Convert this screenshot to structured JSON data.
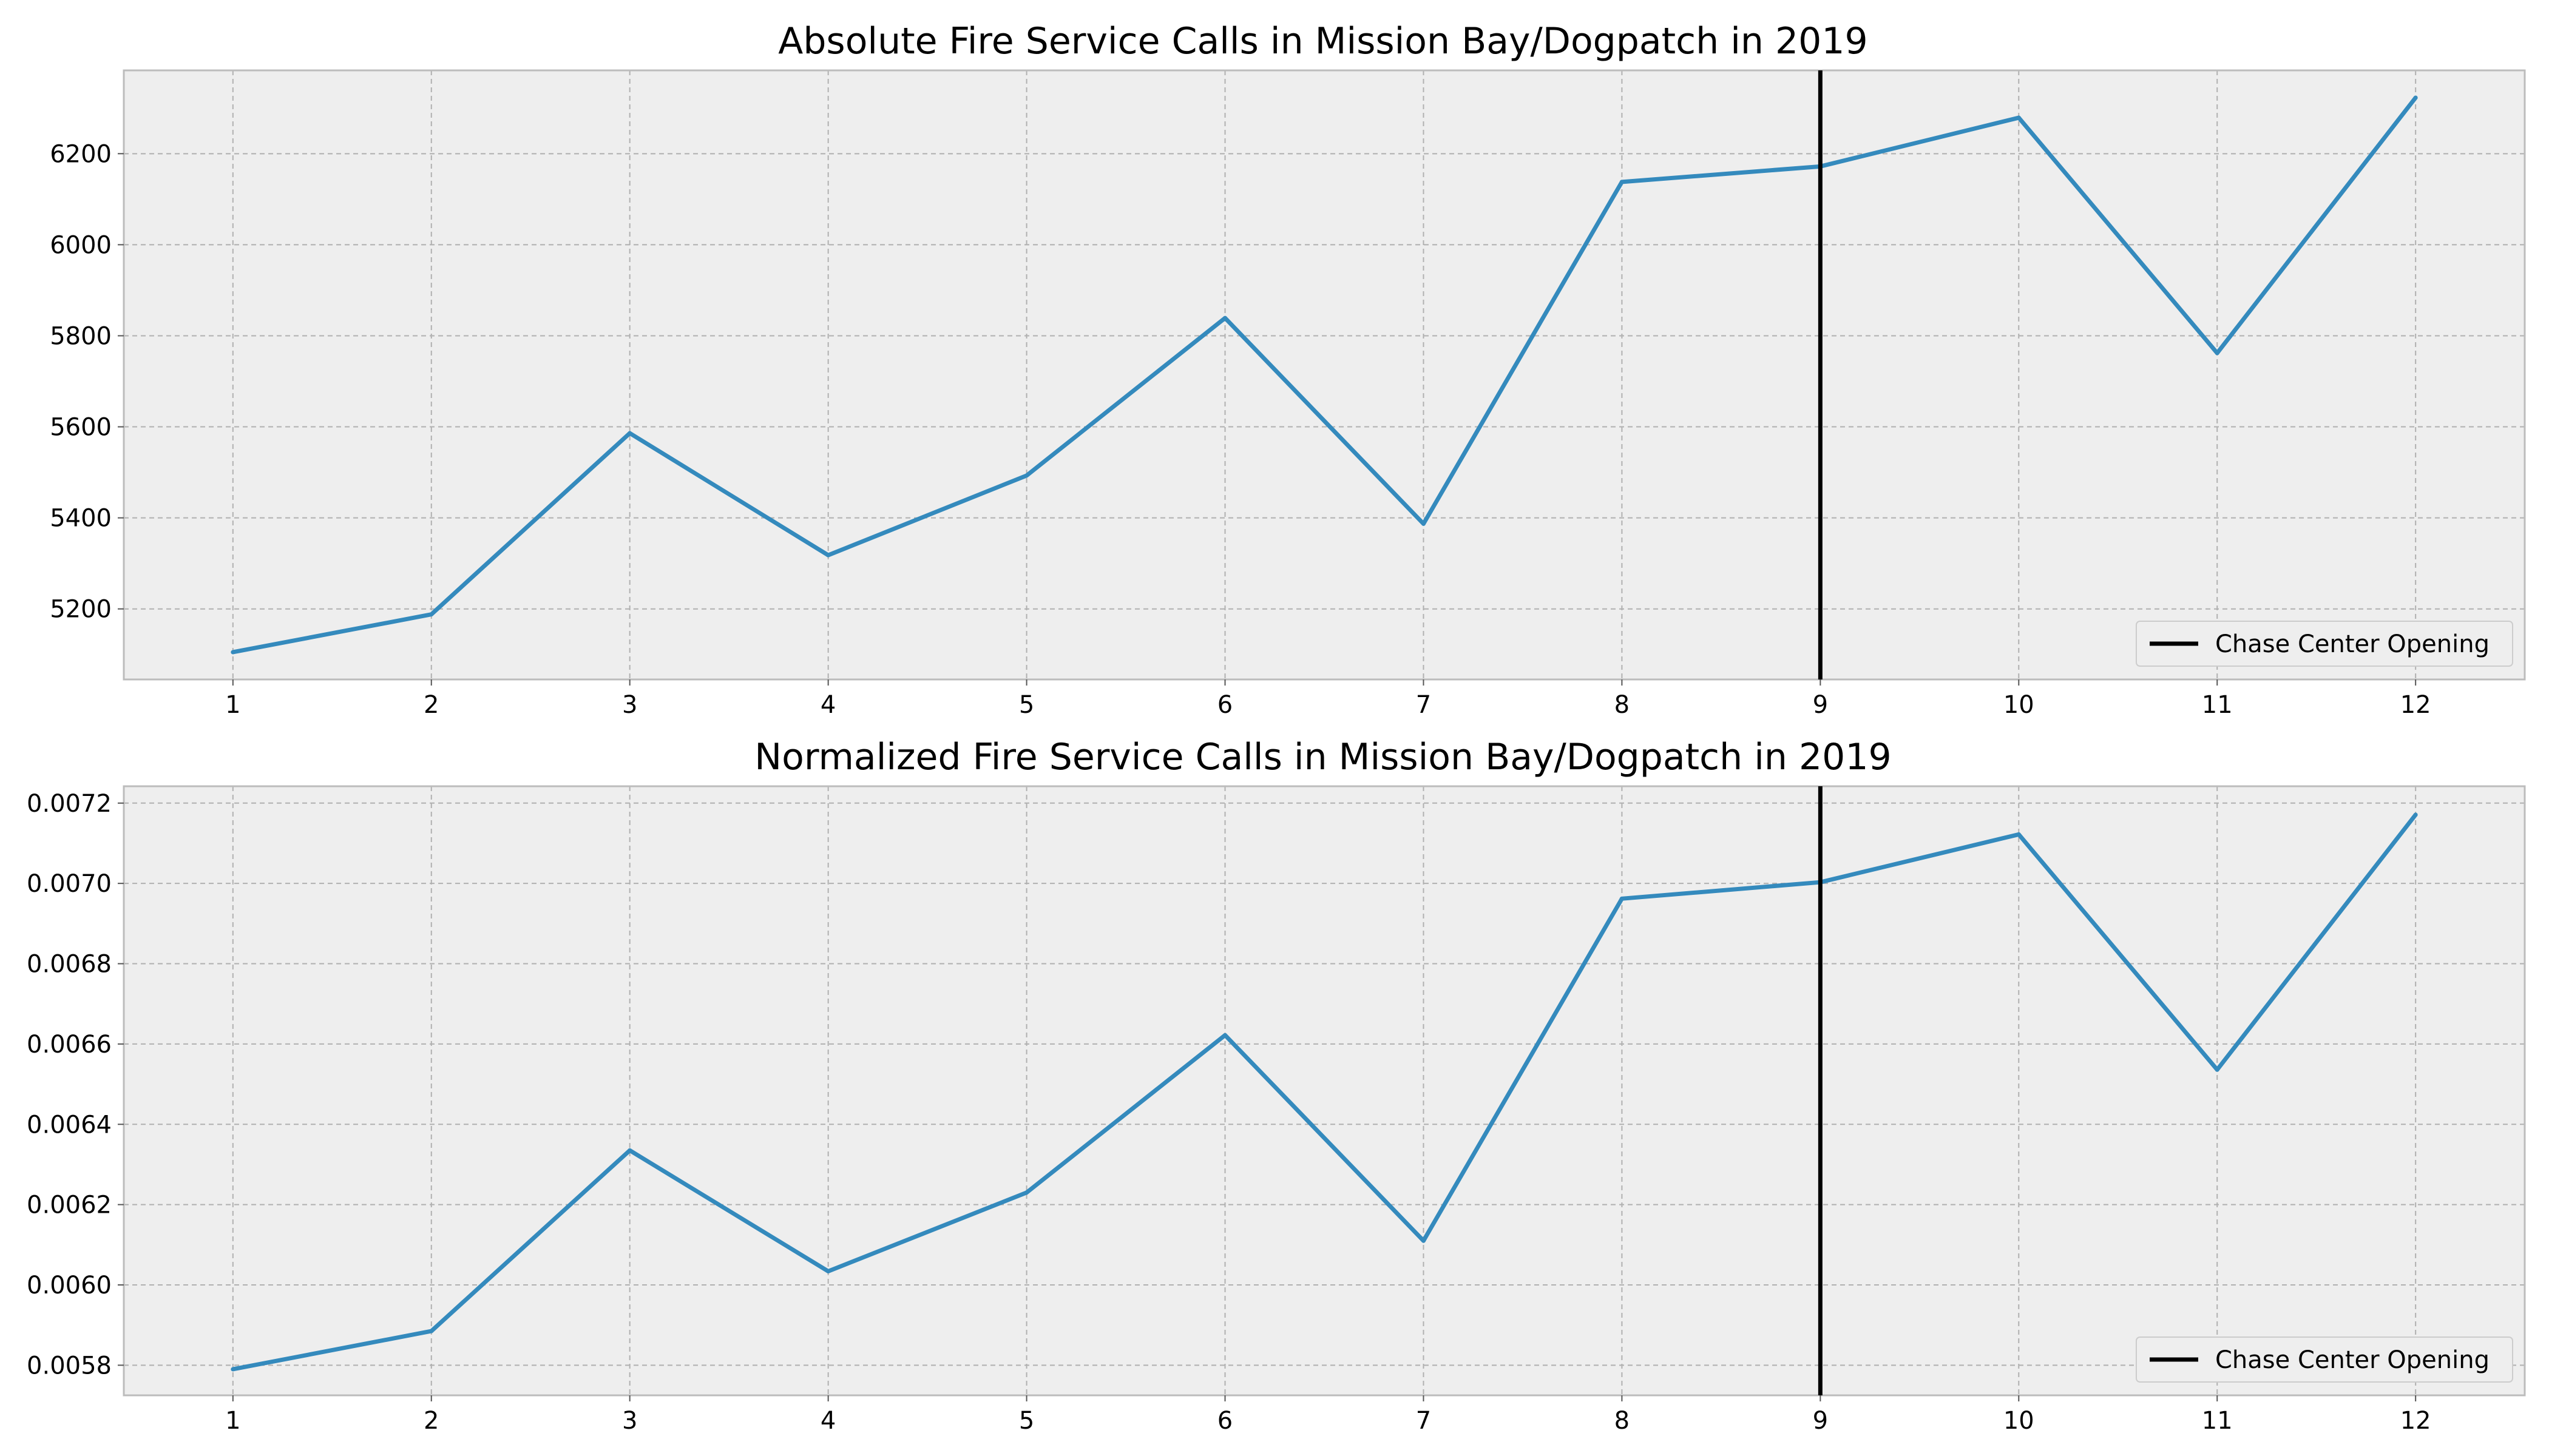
{
  "chart_data": [
    {
      "type": "line",
      "title": "Absolute Fire Service Calls in Mission Bay/Dogpatch in 2019",
      "xlabel": "",
      "ylabel": "",
      "x": [
        1,
        2,
        3,
        4,
        5,
        6,
        7,
        8,
        9,
        10,
        11,
        12
      ],
      "x_ticks": [
        1,
        2,
        3,
        4,
        5,
        6,
        7,
        8,
        9,
        10,
        11,
        12
      ],
      "y_ticks": [
        5200,
        5400,
        5600,
        5800,
        6000,
        6200
      ],
      "y_tick_labels": [
        "5200",
        "5400",
        "5600",
        "5800",
        "6000",
        "6200"
      ],
      "xlim": [
        0.45,
        12.55
      ],
      "ylim": [
        5045,
        6383
      ],
      "grid": true,
      "legend_position": "lower right",
      "series": [
        {
          "values": [
            5105,
            5188,
            5586,
            5318,
            5493,
            5839,
            5387,
            6138,
            6172,
            6279,
            5762,
            6323
          ],
          "color": "#348abd"
        }
      ],
      "vline": {
        "x": 9,
        "label": "Chase Center Opening",
        "color": "#000000"
      }
    },
    {
      "type": "line",
      "title": "Normalized Fire Service Calls in Mission Bay/Dogpatch in 2019",
      "xlabel": "",
      "ylabel": "",
      "x": [
        1,
        2,
        3,
        4,
        5,
        6,
        7,
        8,
        9,
        10,
        11,
        12
      ],
      "x_ticks": [
        1,
        2,
        3,
        4,
        5,
        6,
        7,
        8,
        9,
        10,
        11,
        12
      ],
      "y_ticks": [
        0.0058,
        0.006,
        0.0062,
        0.0064,
        0.0066,
        0.0068,
        0.007,
        0.0072
      ],
      "y_tick_labels": [
        "0.0058",
        "0.0060",
        "0.0062",
        "0.0064",
        "0.0066",
        "0.0068",
        "0.0070",
        "0.0072"
      ],
      "xlim": [
        0.45,
        12.55
      ],
      "ylim": [
        0.005725,
        0.007242
      ],
      "grid": true,
      "legend_position": "lower right",
      "series": [
        {
          "values": [
            0.00579,
            0.005885,
            0.006335,
            0.006034,
            0.00623,
            0.006622,
            0.00611,
            0.006962,
            0.007003,
            0.007122,
            0.006536,
            0.007171
          ],
          "color": "#348abd"
        }
      ],
      "vline": {
        "x": 9,
        "label": "Chase Center Opening",
        "color": "#000000"
      }
    }
  ],
  "style": {
    "plot_background": "#eeeeee",
    "plot_border": "#bcbcbc",
    "grid_color": "#b0b0b0",
    "tick_color": "#555555",
    "legend_background": "#eeeeee",
    "legend_border": "#cccccc"
  }
}
